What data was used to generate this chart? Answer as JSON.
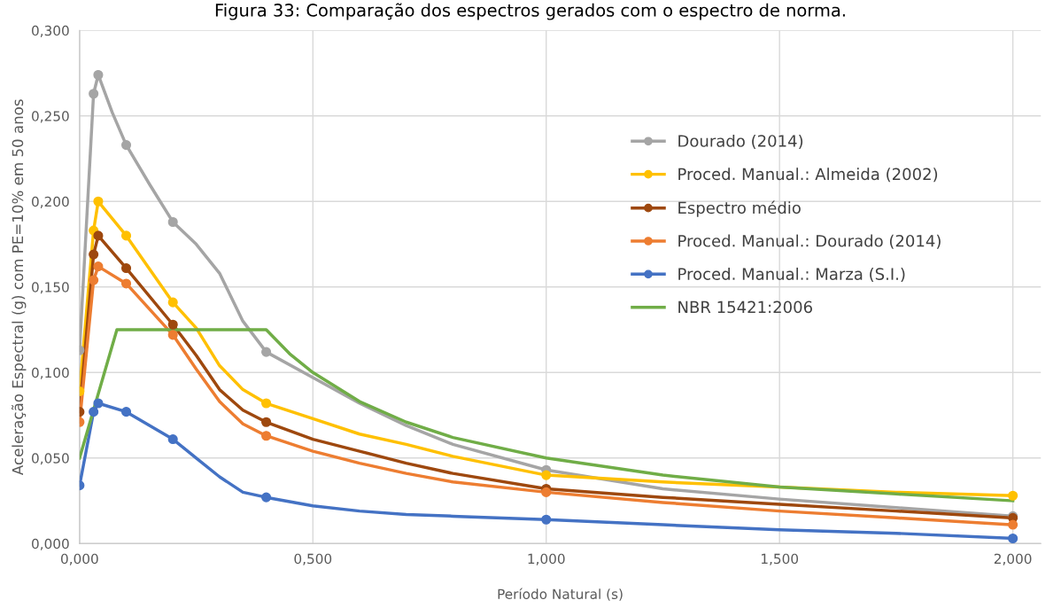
{
  "chart_data": {
    "type": "line",
    "title": "Figura 33: Comparação dos espectros gerados com o espectro de norma.",
    "xlabel": "Período Natural (s)",
    "ylabel": "Aceleração Espectral (g) com PE=10% em 50 anos",
    "xlim": [
      0,
      2.06
    ],
    "ylim": [
      0,
      0.3
    ],
    "xticks": [
      {
        "value": 0,
        "label": "0,000"
      },
      {
        "value": 0.5,
        "label": "0,500"
      },
      {
        "value": 1.0,
        "label": "1,000"
      },
      {
        "value": 1.5,
        "label": "1,500"
      },
      {
        "value": 2.0,
        "label": "2,000"
      }
    ],
    "yticks": [
      {
        "value": 0,
        "label": "0,000"
      },
      {
        "value": 0.05,
        "label": "0,050"
      },
      {
        "value": 0.1,
        "label": "0,100"
      },
      {
        "value": 0.15,
        "label": "0,150"
      },
      {
        "value": 0.2,
        "label": "0,200"
      },
      {
        "value": 0.25,
        "label": "0,250"
      },
      {
        "value": 0.3,
        "label": "0,300"
      }
    ],
    "grid": true,
    "legend": "right",
    "marker": "none",
    "series": [
      {
        "name": "Dourado (2014)",
        "color": "#a5a5a5",
        "x": [
          0,
          0.03,
          0.04,
          0.07,
          0.1,
          0.15,
          0.2,
          0.25,
          0.3,
          0.35,
          0.4,
          0.5,
          0.6,
          0.7,
          0.8,
          1.0,
          1.25,
          1.5,
          1.75,
          2.0
        ],
        "values": [
          0.113,
          0.263,
          0.274,
          0.252,
          0.233,
          0.21,
          0.188,
          0.175,
          0.158,
          0.13,
          0.112,
          0.097,
          0.082,
          0.069,
          0.058,
          0.043,
          0.032,
          0.026,
          0.021,
          0.016
        ]
      },
      {
        "type": "scatter",
        "color": "#a5a5a5",
        "marker": "circle",
        "x": [
          0,
          0.03,
          0.04,
          0.1,
          0.2,
          0.4,
          1.0,
          2.0
        ],
        "values": [
          0.113,
          0.263,
          0.274,
          0.233,
          0.188,
          0.112,
          0.043,
          0.016
        ]
      },
      {
        "name": "Proced. Manual.: Almeida (2002)",
        "color": "#ffc000",
        "x": [
          0,
          0.03,
          0.04,
          0.1,
          0.2,
          0.25,
          0.3,
          0.35,
          0.4,
          0.5,
          0.6,
          0.7,
          0.8,
          1.0,
          1.25,
          1.5,
          1.75,
          2.0
        ],
        "values": [
          0.089,
          0.183,
          0.2,
          0.18,
          0.141,
          0.126,
          0.104,
          0.09,
          0.082,
          0.073,
          0.064,
          0.058,
          0.051,
          0.04,
          0.036,
          0.033,
          0.03,
          0.028
        ]
      },
      {
        "type": "scatter",
        "color": "#ffc000",
        "marker": "circle",
        "x": [
          0,
          0.03,
          0.04,
          0.1,
          0.2,
          0.4,
          1.0,
          2.0
        ],
        "values": [
          0.089,
          0.183,
          0.2,
          0.18,
          0.141,
          0.082,
          0.04,
          0.028
        ]
      },
      {
        "name": "Espectro médio",
        "color": "#9e480e",
        "x": [
          0,
          0.03,
          0.04,
          0.1,
          0.2,
          0.25,
          0.3,
          0.35,
          0.4,
          0.5,
          0.6,
          0.7,
          0.8,
          1.0,
          1.25,
          1.5,
          1.75,
          2.0
        ],
        "values": [
          0.077,
          0.169,
          0.18,
          0.161,
          0.128,
          0.11,
          0.09,
          0.078,
          0.071,
          0.061,
          0.054,
          0.047,
          0.041,
          0.032,
          0.027,
          0.023,
          0.019,
          0.015
        ]
      },
      {
        "type": "scatter",
        "color": "#9e480e",
        "marker": "circle",
        "x": [
          0,
          0.03,
          0.04,
          0.1,
          0.2,
          0.4,
          1.0,
          2.0
        ],
        "values": [
          0.077,
          0.169,
          0.18,
          0.161,
          0.128,
          0.071,
          0.032,
          0.015
        ]
      },
      {
        "name": "Proced. Manual.: Dourado (2014)",
        "color": "#ed7d31",
        "x": [
          0,
          0.03,
          0.04,
          0.1,
          0.2,
          0.25,
          0.3,
          0.35,
          0.4,
          0.5,
          0.6,
          0.7,
          0.8,
          1.0,
          1.25,
          1.5,
          1.75,
          2.0
        ],
        "values": [
          0.071,
          0.154,
          0.162,
          0.152,
          0.122,
          0.102,
          0.083,
          0.07,
          0.063,
          0.054,
          0.047,
          0.041,
          0.036,
          0.03,
          0.024,
          0.019,
          0.015,
          0.011
        ]
      },
      {
        "type": "scatter",
        "color": "#ed7d31",
        "marker": "circle",
        "x": [
          0,
          0.03,
          0.04,
          0.1,
          0.2,
          0.4,
          1.0,
          2.0
        ],
        "values": [
          0.071,
          0.154,
          0.162,
          0.152,
          0.122,
          0.063,
          0.03,
          0.011
        ]
      },
      {
        "name": "Proced. Manual.: Marza (S.I.)",
        "color": "#4472c4",
        "x": [
          0,
          0.03,
          0.04,
          0.1,
          0.2,
          0.25,
          0.3,
          0.35,
          0.4,
          0.5,
          0.6,
          0.7,
          0.8,
          1.0,
          1.25,
          1.5,
          1.75,
          2.0
        ],
        "values": [
          0.034,
          0.077,
          0.082,
          0.077,
          0.061,
          0.05,
          0.039,
          0.03,
          0.027,
          0.022,
          0.019,
          0.017,
          0.016,
          0.014,
          0.011,
          0.008,
          0.006,
          0.003
        ]
      },
      {
        "type": "scatter",
        "color": "#4472c4",
        "marker": "circle",
        "x": [
          0,
          0.03,
          0.04,
          0.1,
          0.2,
          0.4,
          1.0,
          2.0
        ],
        "values": [
          0.034,
          0.077,
          0.082,
          0.077,
          0.061,
          0.027,
          0.014,
          0.003
        ]
      },
      {
        "name": "NBR 15421:2006",
        "color": "#70ad47",
        "x": [
          0,
          0.08,
          0.4,
          0.45,
          0.5,
          0.6,
          0.7,
          0.8,
          1.0,
          1.25,
          1.5,
          1.75,
          2.0
        ],
        "values": [
          0.05,
          0.125,
          0.125,
          0.111,
          0.1,
          0.083,
          0.071,
          0.062,
          0.05,
          0.04,
          0.033,
          0.029,
          0.025
        ]
      }
    ]
  }
}
